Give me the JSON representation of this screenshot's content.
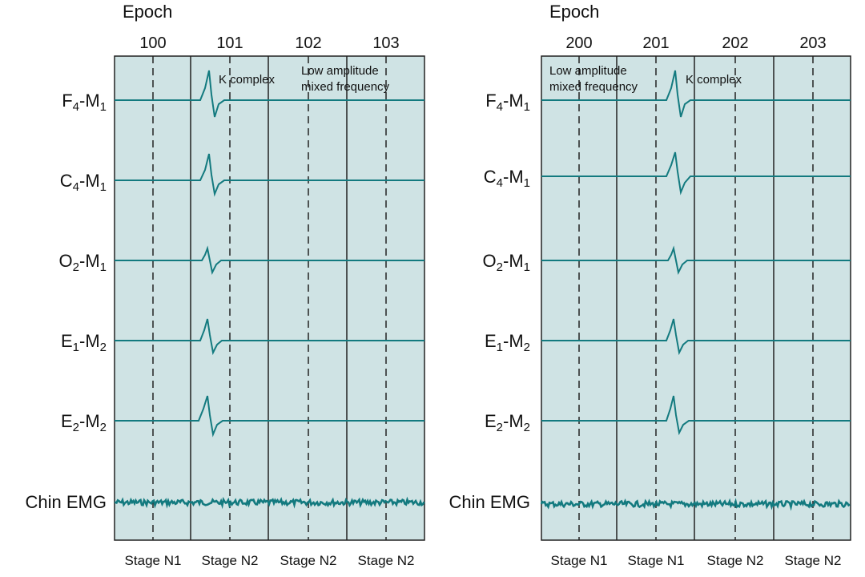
{
  "colors": {
    "panel_bg": "#cfe3e4",
    "trace": "#137a7f",
    "line": "#222222"
  },
  "panels": [
    {
      "epoch_title": "Epoch",
      "epochs": [
        "100",
        "101",
        "102",
        "103"
      ],
      "stages": [
        "Stage N1",
        "Stage N2",
        "Stage N2",
        "Stage N2"
      ],
      "kcomplex_label": "K complex",
      "lowamp_label": [
        "Low amplitude",
        "mixed frequency"
      ],
      "channels": [
        {
          "base": "F",
          "sub1": "4",
          "ref": "M",
          "sub2": "1"
        },
        {
          "base": "C",
          "sub1": "4",
          "ref": "M",
          "sub2": "1"
        },
        {
          "base": "O",
          "sub1": "2",
          "ref": "M",
          "sub2": "1"
        },
        {
          "base": "E",
          "sub1": "1",
          "ref": "M",
          "sub2": "2"
        },
        {
          "base": "E",
          "sub1": "2",
          "ref": "M",
          "sub2": "2"
        }
      ],
      "emg_label": "Chin EMG"
    },
    {
      "epoch_title": "Epoch",
      "epochs": [
        "200",
        "201",
        "202",
        "203"
      ],
      "stages": [
        "Stage N1",
        "Stage N1",
        "Stage N2",
        "Stage N2"
      ],
      "kcomplex_label": "K complex",
      "lowamp_label": [
        "Low amplitude",
        "mixed frequency"
      ],
      "channels": [
        {
          "base": "F",
          "sub1": "4",
          "ref": "M",
          "sub2": "1"
        },
        {
          "base": "C",
          "sub1": "4",
          "ref": "M",
          "sub2": "1"
        },
        {
          "base": "O",
          "sub1": "2",
          "ref": "M",
          "sub2": "1"
        },
        {
          "base": "E",
          "sub1": "1",
          "ref": "M",
          "sub2": "2"
        },
        {
          "base": "E",
          "sub1": "2",
          "ref": "M",
          "sub2": "2"
        }
      ],
      "emg_label": "Chin EMG"
    }
  ]
}
